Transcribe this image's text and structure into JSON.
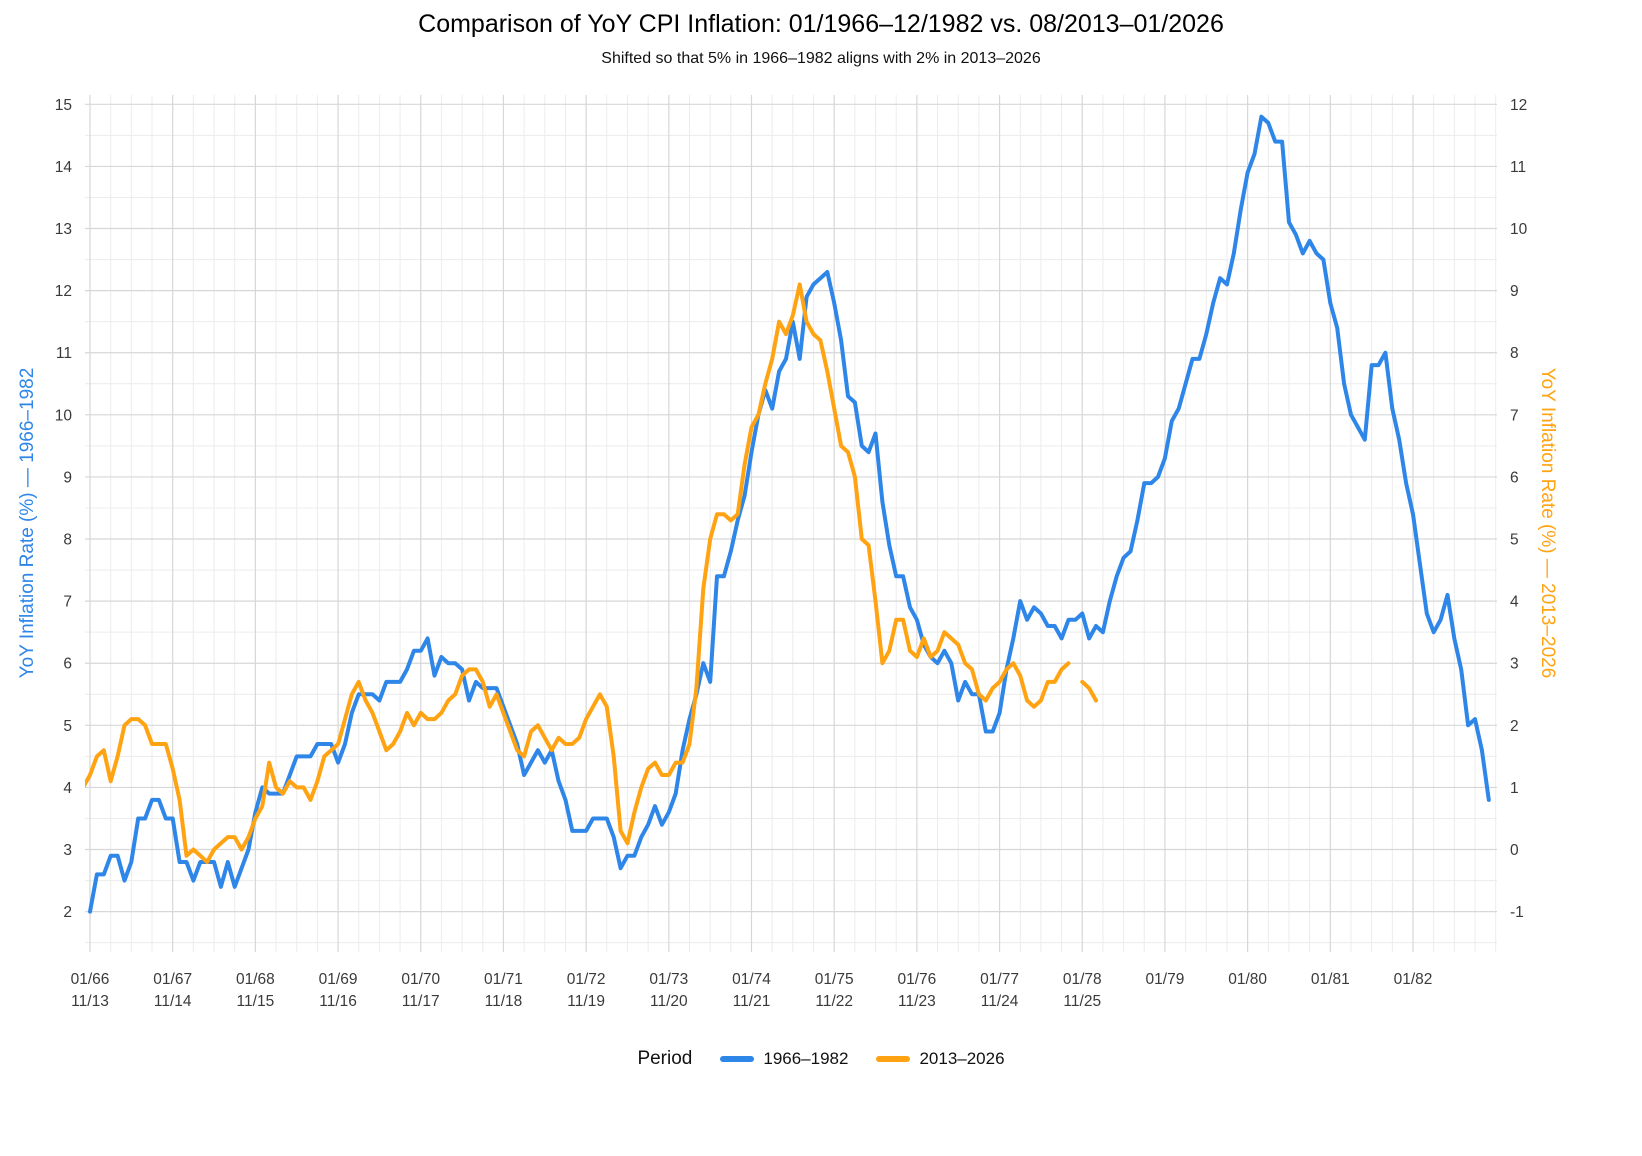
{
  "title": "Comparison of YoY CPI Inflation: 01/1966–12/1982 vs. 08/2013–01/2026",
  "subtitle": "Shifted so that 5% in 1966–1982 aligns with 2% in 2013–2026",
  "legend": {
    "title": "Period",
    "position": "bottom-center",
    "items": [
      {
        "label": "1966–1982",
        "color": "#2E86E8"
      },
      {
        "label": "2013–2026",
        "color": "#FFA312"
      }
    ]
  },
  "axes": {
    "left": {
      "title": "YoY Inflation Rate (%) — 1966–1982",
      "color": "#2E86E8",
      "ticks": [
        2,
        3,
        4,
        5,
        6,
        7,
        8,
        9,
        10,
        11,
        12,
        13,
        14,
        15
      ]
    },
    "right": {
      "title": "YoY Inflation Rate (%) — 2013–2026",
      "color": "#FFA312",
      "ticks": [
        -1,
        0,
        1,
        2,
        3,
        4,
        5,
        6,
        7,
        8,
        9,
        10,
        11,
        12
      ]
    },
    "x": {
      "ticks": [
        {
          "top": "01/66",
          "bottom": "11/13"
        },
        {
          "top": "01/67",
          "bottom": "11/14"
        },
        {
          "top": "01/68",
          "bottom": "11/15"
        },
        {
          "top": "01/69",
          "bottom": "11/16"
        },
        {
          "top": "01/70",
          "bottom": "11/17"
        },
        {
          "top": "01/71",
          "bottom": "11/18"
        },
        {
          "top": "01/72",
          "bottom": "11/19"
        },
        {
          "top": "01/73",
          "bottom": "11/20"
        },
        {
          "top": "01/74",
          "bottom": "11/21"
        },
        {
          "top": "01/75",
          "bottom": "11/22"
        },
        {
          "top": "01/76",
          "bottom": "11/23"
        },
        {
          "top": "01/77",
          "bottom": "11/24"
        },
        {
          "top": "01/78",
          "bottom": "11/25"
        },
        {
          "top": "01/79",
          "bottom": ""
        },
        {
          "top": "01/80",
          "bottom": ""
        },
        {
          "top": "01/81",
          "bottom": ""
        },
        {
          "top": "01/82",
          "bottom": ""
        }
      ]
    }
  },
  "chart_data": {
    "type": "line",
    "title": "Comparison of YoY CPI Inflation: 01/1966–12/1982 vs. 08/2013–01/2026",
    "subtitle": "Shifted so that 5% in 1966–1982 aligns with 2% in 2013–2026",
    "grid": true,
    "left_ylim": [
      2,
      15
    ],
    "right_ylim": [
      -1,
      12
    ],
    "right_to_left_shift": 3,
    "alignment": "x: 11/2013 aligned with 01/1966 (one orange month per blue month); y: right-axis value v plots at left-axis v + 3, so 2% (2013–2026) aligns with 5% (1966–1982)",
    "x_unit": "month",
    "x_major_tick_every_months": 12,
    "series": [
      {
        "name": "1966–1982",
        "axis": "left",
        "color": "#2E86E8",
        "start": "1966-01",
        "months_offset": 0,
        "values": [
          2.0,
          2.6,
          2.6,
          2.9,
          2.9,
          2.5,
          2.8,
          3.5,
          3.5,
          3.8,
          3.8,
          3.5,
          3.5,
          2.8,
          2.8,
          2.5,
          2.8,
          2.8,
          2.8,
          2.4,
          2.8,
          2.4,
          2.7,
          3.0,
          3.6,
          4.0,
          3.9,
          3.9,
          3.9,
          4.2,
          4.5,
          4.5,
          4.5,
          4.7,
          4.7,
          4.7,
          4.4,
          4.7,
          5.2,
          5.5,
          5.5,
          5.5,
          5.4,
          5.7,
          5.7,
          5.7,
          5.9,
          6.2,
          6.2,
          6.4,
          5.8,
          6.1,
          6.0,
          6.0,
          5.9,
          5.4,
          5.7,
          5.6,
          5.6,
          5.6,
          5.3,
          5.0,
          4.7,
          4.2,
          4.4,
          4.6,
          4.4,
          4.6,
          4.1,
          3.8,
          3.3,
          3.3,
          3.3,
          3.5,
          3.5,
          3.5,
          3.2,
          2.7,
          2.9,
          2.9,
          3.2,
          3.4,
          3.7,
          3.4,
          3.6,
          3.9,
          4.6,
          5.1,
          5.5,
          6.0,
          5.7,
          7.4,
          7.4,
          7.8,
          8.3,
          8.7,
          9.4,
          10.0,
          10.4,
          10.1,
          10.7,
          10.9,
          11.5,
          10.9,
          11.9,
          12.1,
          12.2,
          12.3,
          11.8,
          11.2,
          10.3,
          10.2,
          9.5,
          9.4,
          9.7,
          8.6,
          7.9,
          7.4,
          7.4,
          6.9,
          6.7,
          6.3,
          6.1,
          6.0,
          6.2,
          6.0,
          5.4,
          5.7,
          5.5,
          5.5,
          4.9,
          4.9,
          5.2,
          5.9,
          6.4,
          7.0,
          6.7,
          6.9,
          6.8,
          6.6,
          6.6,
          6.4,
          6.7,
          6.7,
          6.8,
          6.4,
          6.6,
          6.5,
          7.0,
          7.4,
          7.7,
          7.8,
          8.3,
          8.9,
          8.9,
          9.0,
          9.3,
          9.9,
          10.1,
          10.5,
          10.9,
          10.9,
          11.3,
          11.8,
          12.2,
          12.1,
          12.6,
          13.3,
          13.9,
          14.2,
          14.8,
          14.7,
          14.4,
          14.4,
          13.1,
          12.9,
          12.6,
          12.8,
          12.6,
          12.5,
          11.8,
          11.4,
          10.5,
          10.0,
          9.8,
          9.6,
          10.8,
          10.8,
          11.0,
          10.1,
          9.6,
          8.9,
          8.4,
          7.6,
          6.8,
          6.5,
          6.7,
          7.1,
          6.4,
          5.9,
          5.0,
          5.1,
          4.6,
          3.8
        ]
      },
      {
        "name": "2013–2026",
        "axis": "right",
        "color": "#FFA312",
        "start": "2013-08",
        "months_offset": -3,
        "values": [
          1.5,
          1.2,
          1.0,
          1.2,
          1.5,
          1.6,
          1.1,
          1.5,
          2.0,
          2.1,
          2.1,
          2.0,
          1.7,
          1.7,
          1.7,
          1.3,
          0.8,
          -0.1,
          0.0,
          -0.1,
          -0.2,
          0.0,
          0.1,
          0.2,
          0.2,
          0.0,
          0.2,
          0.5,
          0.7,
          1.4,
          1.0,
          0.9,
          1.1,
          1.0,
          1.0,
          0.8,
          1.1,
          1.5,
          1.6,
          1.7,
          2.1,
          2.5,
          2.7,
          2.4,
          2.2,
          1.9,
          1.6,
          1.7,
          1.9,
          2.2,
          2.0,
          2.2,
          2.1,
          2.1,
          2.2,
          2.4,
          2.5,
          2.8,
          2.9,
          2.9,
          2.7,
          2.3,
          2.5,
          2.2,
          1.9,
          1.6,
          1.5,
          1.9,
          2.0,
          1.8,
          1.6,
          1.8,
          1.7,
          1.7,
          1.8,
          2.1,
          2.3,
          2.5,
          2.3,
          1.5,
          0.3,
          0.1,
          0.6,
          1.0,
          1.3,
          1.4,
          1.2,
          1.2,
          1.4,
          1.4,
          1.7,
          2.6,
          4.2,
          5.0,
          5.4,
          5.4,
          5.3,
          5.4,
          6.2,
          6.8,
          7.0,
          7.5,
          7.9,
          8.5,
          8.3,
          8.6,
          9.1,
          8.5,
          8.3,
          8.2,
          7.7,
          7.1,
          6.5,
          6.4,
          6.0,
          5.0,
          4.9,
          4.0,
          3.0,
          3.2,
          3.7,
          3.7,
          3.2,
          3.1,
          3.4,
          3.1,
          3.2,
          3.5,
          3.4,
          3.3,
          3.0,
          2.9,
          2.5,
          2.4,
          2.6,
          2.7,
          2.9,
          3.0,
          2.8,
          2.4,
          2.3,
          2.4,
          2.7,
          2.7,
          2.9,
          3.0,
          null,
          2.7,
          2.6,
          2.4
        ]
      }
    ]
  }
}
